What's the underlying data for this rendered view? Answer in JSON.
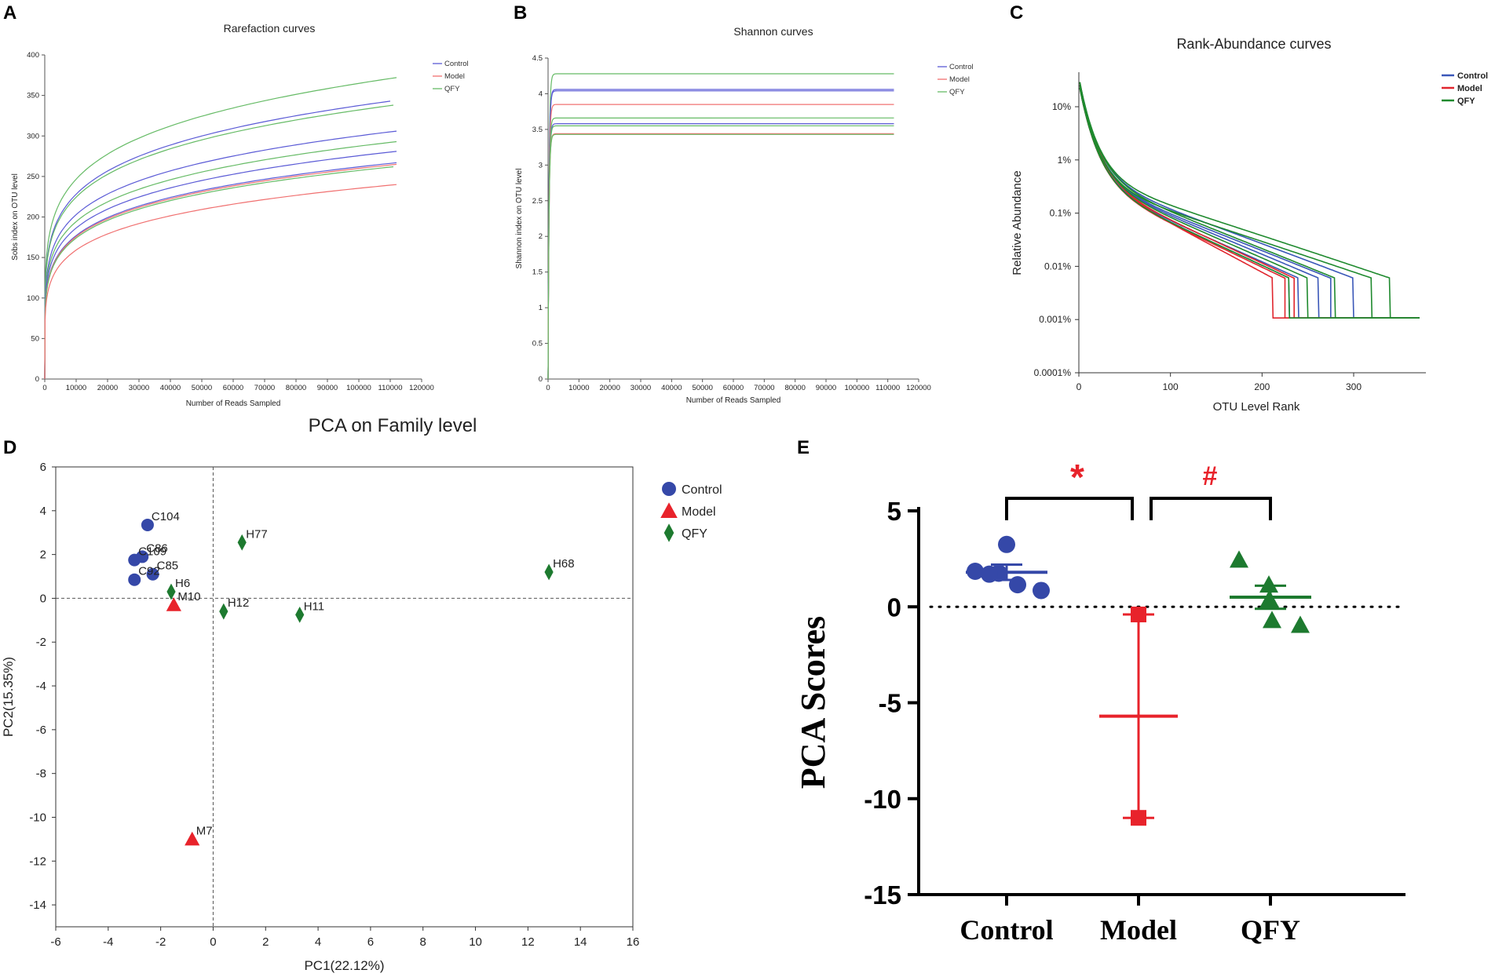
{
  "figure": {
    "panels": {
      "A": "A",
      "B": "B",
      "C": "C",
      "D": "D",
      "E": "E"
    }
  },
  "chart_data": [
    {
      "panel": "A",
      "type": "line",
      "title": "Rarefaction curves",
      "xlabel": "Number of Reads Sampled",
      "ylabel": "Sobs index on OTU level",
      "xlim": [
        0,
        120000
      ],
      "ylim": [
        0,
        400
      ],
      "xticks": [
        "0",
        "10000",
        "20000",
        "30000",
        "40000",
        "50000",
        "60000",
        "70000",
        "80000",
        "90000",
        "100000",
        "110000",
        "120000"
      ],
      "yticks": [
        "0",
        "50",
        "100",
        "150",
        "200",
        "250",
        "300",
        "350",
        "400"
      ],
      "legend": [
        "Control",
        "Model",
        "QFY"
      ],
      "colors": {
        "Control": "#5b5bd6",
        "Model": "#f07070",
        "QFY": "#66bb66"
      },
      "series": [
        {
          "group": "QFY",
          "final": 372,
          "xmax": 112000
        },
        {
          "group": "Control",
          "final": 343,
          "xmax": 110000
        },
        {
          "group": "QFY",
          "final": 338,
          "xmax": 111000
        },
        {
          "group": "Control",
          "final": 306,
          "xmax": 112000
        },
        {
          "group": "QFY",
          "final": 293,
          "xmax": 112000
        },
        {
          "group": "Control",
          "final": 281,
          "xmax": 112000
        },
        {
          "group": "Control",
          "final": 267,
          "xmax": 112000
        },
        {
          "group": "Model",
          "final": 265,
          "xmax": 112000
        },
        {
          "group": "QFY",
          "final": 262,
          "xmax": 111000
        },
        {
          "group": "Model",
          "final": 240,
          "xmax": 112000
        }
      ]
    },
    {
      "panel": "B",
      "type": "line",
      "title": "Shannon curves",
      "xlabel": "Number of Reads Sampled",
      "ylabel": "Shannon index on OTU level",
      "xlim": [
        0,
        120000
      ],
      "ylim": [
        0,
        4.5
      ],
      "xticks": [
        "0",
        "10000",
        "20000",
        "30000",
        "40000",
        "50000",
        "60000",
        "70000",
        "80000",
        "90000",
        "100000",
        "110000",
        "120000"
      ],
      "yticks": [
        "0",
        "0.5",
        "1",
        "1.5",
        "2",
        "2.5",
        "3",
        "3.5",
        "4",
        "4.5"
      ],
      "legend": [
        "Control",
        "Model",
        "QFY"
      ],
      "colors": {
        "Control": "#5b5bd6",
        "Model": "#f07070",
        "QFY": "#66bb66"
      },
      "series": [
        {
          "group": "QFY",
          "final": 4.28
        },
        {
          "group": "Control",
          "final": 4.06
        },
        {
          "group": "Control",
          "final": 4.04
        },
        {
          "group": "Model",
          "final": 3.85
        },
        {
          "group": "QFY",
          "final": 3.66
        },
        {
          "group": "Control",
          "final": 3.58
        },
        {
          "group": "QFY",
          "final": 3.55
        },
        {
          "group": "Model",
          "final": 3.44
        },
        {
          "group": "QFY",
          "final": 3.43
        }
      ]
    },
    {
      "panel": "C",
      "type": "line",
      "title": "Rank-Abundance curves",
      "xlabel": "OTU Level Rank",
      "ylabel": "Relative Abundance",
      "xticks": [
        "0",
        "100",
        "200",
        "300"
      ],
      "yticks": [
        "10%",
        "1%",
        "0.1%",
        "0.01%",
        "0.001%",
        "0.0001%"
      ],
      "legend": [
        "Control",
        "Model",
        "QFY"
      ],
      "colors": {
        "Control": "#3a57b8",
        "Model": "#e0262e",
        "QFY": "#1f8a2e"
      },
      "series": [
        {
          "group": "Control",
          "end_rank": 230
        },
        {
          "group": "Control",
          "end_rank": 262
        },
        {
          "group": "Control",
          "end_rank": 300
        },
        {
          "group": "Control",
          "end_rank": 240
        },
        {
          "group": "Control",
          "end_rank": 275
        },
        {
          "group": "Model",
          "end_rank": 212
        },
        {
          "group": "Model",
          "end_rank": 225
        },
        {
          "group": "Model",
          "end_rank": 235
        },
        {
          "group": "QFY",
          "end_rank": 340
        },
        {
          "group": "QFY",
          "end_rank": 320
        },
        {
          "group": "QFY",
          "end_rank": 250
        },
        {
          "group": "QFY",
          "end_rank": 280
        },
        {
          "group": "QFY",
          "end_rank": 230
        }
      ]
    },
    {
      "panel": "D",
      "type": "scatter",
      "title": "PCA on Family level",
      "xlabel": "PC1(22.12%)",
      "ylabel": "PC2(15.35%)",
      "xlim": [
        -6,
        16
      ],
      "ylim": [
        -15,
        6
      ],
      "xticks": [
        "-6",
        "-4",
        "-2",
        "0",
        "2",
        "4",
        "6",
        "8",
        "10",
        "12",
        "14",
        "16"
      ],
      "yticks": [
        "6",
        "4",
        "2",
        "0",
        "-2",
        "-4",
        "-6",
        "-8",
        "-10",
        "-12",
        "-14"
      ],
      "legend": [
        "Control",
        "Model",
        "QFY"
      ],
      "colors": {
        "Control": "#3548a8",
        "Model": "#e8232b",
        "QFY": "#1d7a2f"
      },
      "points": [
        {
          "label": "C104",
          "group": "Control",
          "x": -2.5,
          "y": 3.35
        },
        {
          "label": "C86",
          "group": "Control",
          "x": -2.7,
          "y": 1.9
        },
        {
          "label": "C109",
          "group": "Control",
          "x": -3.0,
          "y": 1.75
        },
        {
          "label": "C85",
          "group": "Control",
          "x": -2.3,
          "y": 1.1
        },
        {
          "label": "C92",
          "group": "Control",
          "x": -3.0,
          "y": 0.85
        },
        {
          "label": "H6",
          "group": "QFY",
          "x": -1.6,
          "y": 0.3
        },
        {
          "label": "M10",
          "group": "Model",
          "x": -1.5,
          "y": -0.3
        },
        {
          "label": "H77",
          "group": "QFY",
          "x": 1.1,
          "y": 2.55
        },
        {
          "label": "H12",
          "group": "QFY",
          "x": 0.4,
          "y": -0.6
        },
        {
          "label": "H11",
          "group": "QFY",
          "x": 3.3,
          "y": -0.75
        },
        {
          "label": "H68",
          "group": "QFY",
          "x": 12.8,
          "y": 1.2
        },
        {
          "label": "M7",
          "group": "Model",
          "x": -0.8,
          "y": -11.0
        }
      ]
    },
    {
      "panel": "E",
      "type": "scatter",
      "title": "",
      "xlabel": "",
      "ylabel": "PCA Scores",
      "ylim": [
        -15,
        5
      ],
      "yticks": [
        "5",
        "0",
        "-5",
        "-10",
        "-15"
      ],
      "categories": [
        "Control",
        "Model",
        "QFY"
      ],
      "colors": {
        "Control": "#3548a8",
        "Model": "#e8232b",
        "QFY": "#1d7a2f"
      },
      "groups": [
        {
          "name": "Control",
          "values": [
            1.9,
            1.75,
            1.7,
            1.1,
            0.85,
            3.3
          ],
          "mean": 1.8,
          "err": 0.4
        },
        {
          "name": "Model",
          "values": [
            -0.4,
            -11.0
          ],
          "mean": -5.7,
          "err": 5.3
        },
        {
          "name": "QFY",
          "values": [
            2.4,
            0.4,
            -0.7,
            1.2,
            -0.9,
            0.3
          ],
          "mean": 0.5,
          "err": 0.6
        }
      ],
      "annotations": [
        {
          "text": "*",
          "between": [
            "Control",
            "Model"
          ],
          "color": "#e8232b"
        },
        {
          "text": "#",
          "between": [
            "Model",
            "QFY"
          ],
          "color": "#e8232b"
        }
      ]
    }
  ]
}
